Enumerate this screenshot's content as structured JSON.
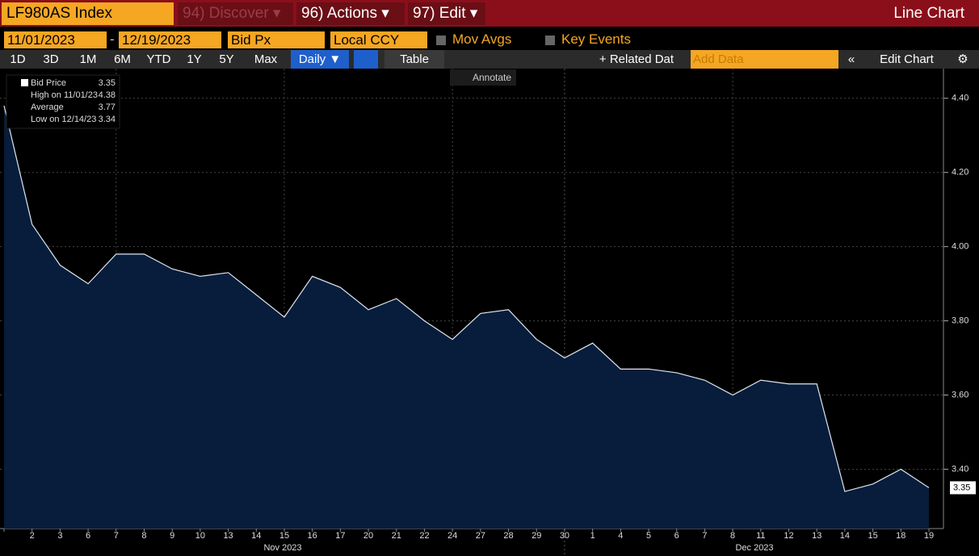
{
  "header": {
    "security": "LF980AS Index",
    "discover": "94) Discover ▾",
    "actions": "96) Actions ▾",
    "edit": "97) Edit ▾",
    "chart_type": "Line Chart"
  },
  "controls": {
    "start_date": "11/01/2023",
    "date_sep": "-",
    "end_date": "12/19/2023",
    "field": "Bid Px",
    "currency": "Local CCY",
    "mov_avgs": "Mov Avgs",
    "key_events": "Key Events"
  },
  "periods": [
    "1D",
    "3D",
    "1M",
    "6M",
    "YTD",
    "1Y",
    "5Y",
    "Max"
  ],
  "frequency": "Daily ▼",
  "table": "Table",
  "related": "+ Related Dat",
  "add_data": "Add Data",
  "collapse": "«",
  "edit_chart": "Edit Chart",
  "annotate": "Annotate",
  "chart_data": {
    "type": "line",
    "categories": [
      null,
      "2",
      "3",
      "6",
      "7",
      "8",
      "9",
      "10",
      "13",
      "14",
      "15",
      "16",
      "17",
      "20",
      "21",
      "22",
      "24",
      "27",
      "28",
      "29",
      "30",
      "1",
      "4",
      "5",
      "6",
      "7",
      "8",
      "11",
      "12",
      "13",
      "14",
      "15",
      "18",
      "19"
    ],
    "month_labels": [
      "Nov 2023",
      "Dec 2023"
    ],
    "series": [
      {
        "name": "Bid Price",
        "color": "#dfe6f0",
        "values": [
          4.38,
          4.06,
          3.95,
          3.9,
          3.98,
          3.98,
          3.94,
          3.92,
          3.93,
          3.87,
          3.81,
          3.92,
          3.89,
          3.83,
          3.86,
          3.8,
          3.75,
          3.82,
          3.83,
          3.75,
          3.7,
          3.74,
          3.67,
          3.67,
          3.66,
          3.64,
          3.6,
          3.64,
          3.63,
          3.63,
          3.34,
          3.36,
          3.4,
          3.35
        ]
      }
    ],
    "area_color": "#071d3b",
    "stats": [
      {
        "label": "High on 11/01/23",
        "value": 4.38
      },
      {
        "label": "Average",
        "value": 3.77
      },
      {
        "label": "Low on 12/14/23",
        "value": 3.34
      }
    ],
    "ylim": [
      3.24,
      4.48
    ],
    "yticks": [
      {
        "value": 3.4,
        "label": "3.40"
      },
      {
        "value": 3.6,
        "label": "3.60"
      },
      {
        "value": 3.8,
        "label": "3.80"
      },
      {
        "value": 4.0,
        "label": "4.00"
      },
      {
        "value": 4.2,
        "label": "4.20"
      },
      {
        "value": 4.4,
        "label": "4.40"
      }
    ],
    "grid": true
  }
}
